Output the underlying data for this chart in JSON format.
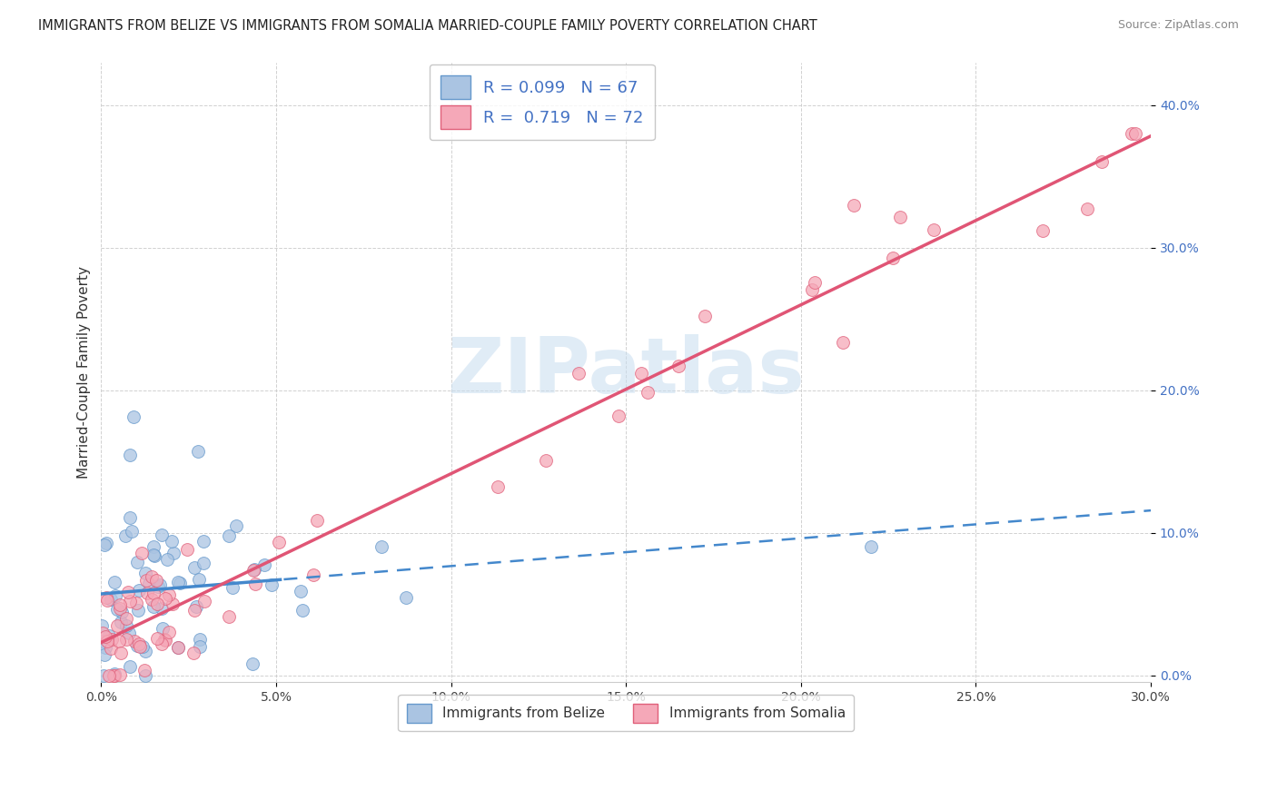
{
  "title": "IMMIGRANTS FROM BELIZE VS IMMIGRANTS FROM SOMALIA MARRIED-COUPLE FAMILY POVERTY CORRELATION CHART",
  "source": "Source: ZipAtlas.com",
  "ylabel": "Married-Couple Family Poverty",
  "xlim": [
    0.0,
    0.3
  ],
  "ylim": [
    -0.005,
    0.43
  ],
  "belize_color": "#aac4e2",
  "belize_edge_color": "#6699cc",
  "somalia_color": "#f5a8b8",
  "somalia_edge_color": "#e0607a",
  "belize_line_color": "#4488cc",
  "somalia_line_color": "#e05575",
  "watermark_text": "ZIPatlas",
  "watermark_color": "#c8ddf0",
  "legend_belize": "R = 0.099   N = 67",
  "legend_somalia": "R =  0.719   N = 72",
  "bottom_legend_belize": "Immigrants from Belize",
  "bottom_legend_somalia": "Immigrants from Somalia",
  "x_ticks": [
    0.0,
    0.05,
    0.1,
    0.15,
    0.2,
    0.25,
    0.3
  ],
  "y_ticks": [
    0.0,
    0.1,
    0.2,
    0.3,
    0.4
  ],
  "title_color": "#222222",
  "source_color": "#888888",
  "ytick_color": "#4472c4",
  "xtick_color": "#444444",
  "grid_color": "#cccccc",
  "note_belize_line_ends_at": 0.05,
  "note_belize_line_solid_to": 0.05,
  "note_belize_line_dashed_from": 0.05
}
